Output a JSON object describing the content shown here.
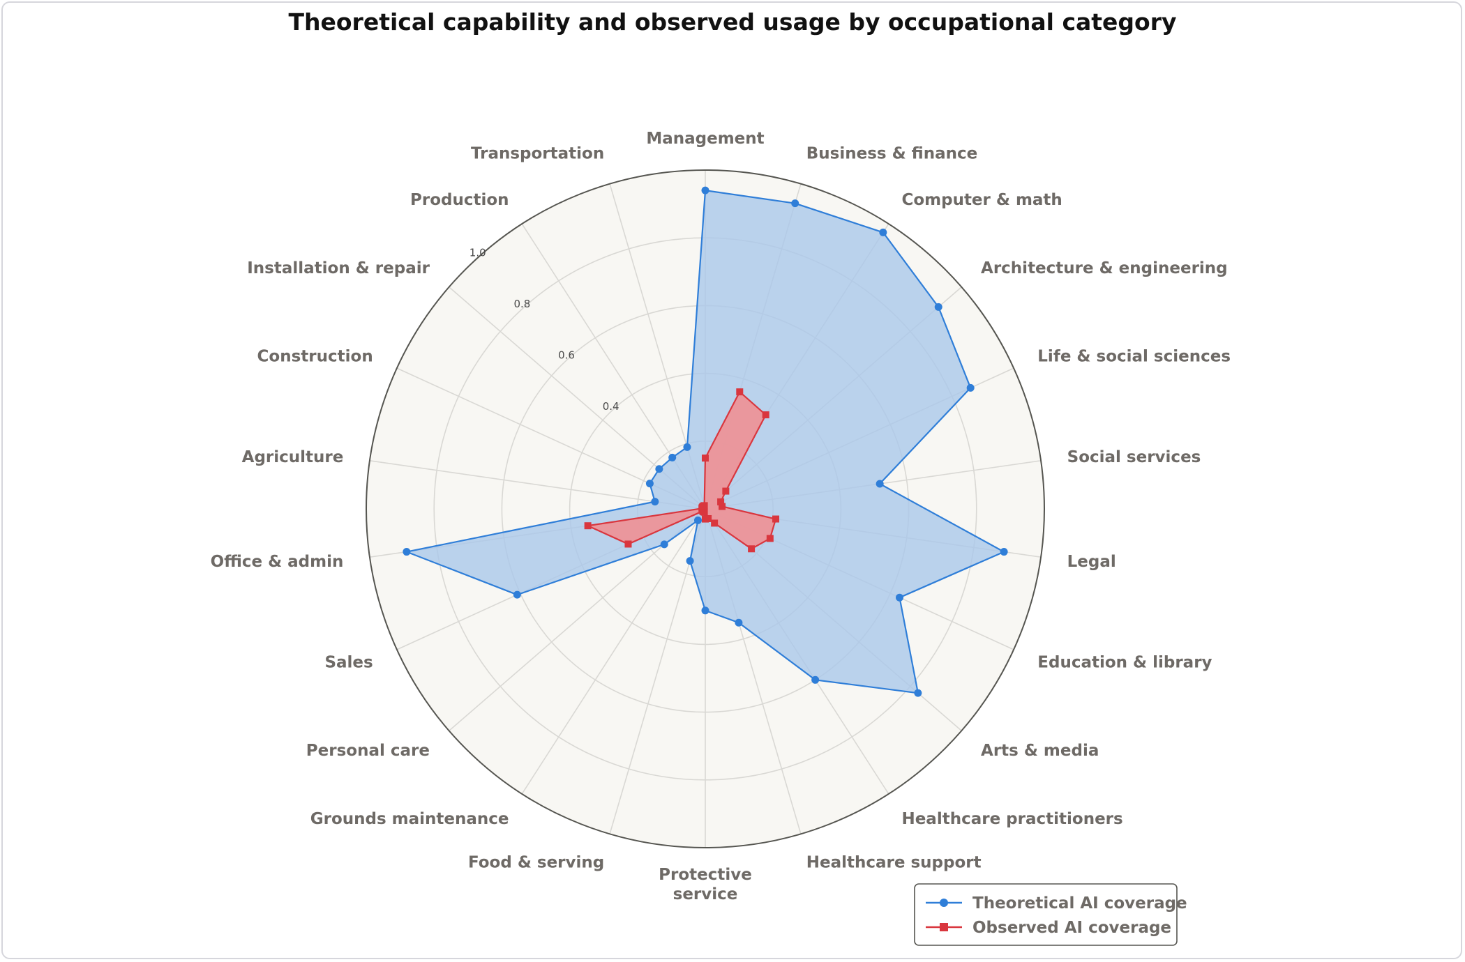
{
  "chart_data": {
    "type": "radar",
    "title": "Theoretical capability and observed usage by occupational category",
    "categories": [
      "Management",
      "Business & finance",
      "Computer & math",
      "Architecture & engineering",
      "Life & social sciences",
      "Social services",
      "Legal",
      "Education & library",
      "Arts & media",
      "Healthcare practitioners",
      "Healthcare support",
      "Protective service",
      "Food & serving",
      "Grounds maintenance",
      "Personal care",
      "Sales",
      "Office & admin",
      "Agriculture",
      "Construction",
      "Installation & repair",
      "Production",
      "Transportation"
    ],
    "rlim": [
      0,
      1.0
    ],
    "rticks": [
      "0.4",
      "0.6",
      "0.8",
      "1.0"
    ],
    "rtick_values": [
      0.4,
      0.6,
      0.8,
      1.0
    ],
    "legend_position": "bottom-right",
    "series": [
      {
        "name": "Theoretical AI coverage",
        "color": "#2f7ed8",
        "fill": "#aac8ea",
        "marker": "circle",
        "values": [
          0.94,
          0.94,
          0.97,
          0.91,
          0.86,
          0.52,
          0.89,
          0.63,
          0.83,
          0.6,
          0.35,
          0.3,
          0.16,
          0.04,
          0.16,
          0.61,
          0.89,
          0.15,
          0.18,
          0.18,
          0.18,
          0.19
        ]
      },
      {
        "name": "Observed AI coverage",
        "color": "#d9363e",
        "fill": "#ec9499",
        "marker": "square",
        "values": [
          0.15,
          0.36,
          0.33,
          0.08,
          0.05,
          0.05,
          0.21,
          0.21,
          0.18,
          0.05,
          0.03,
          0.03,
          0.01,
          0.01,
          0.01,
          0.25,
          0.35,
          0.01,
          0.01,
          0.01,
          0.01,
          0.01
        ]
      }
    ]
  }
}
